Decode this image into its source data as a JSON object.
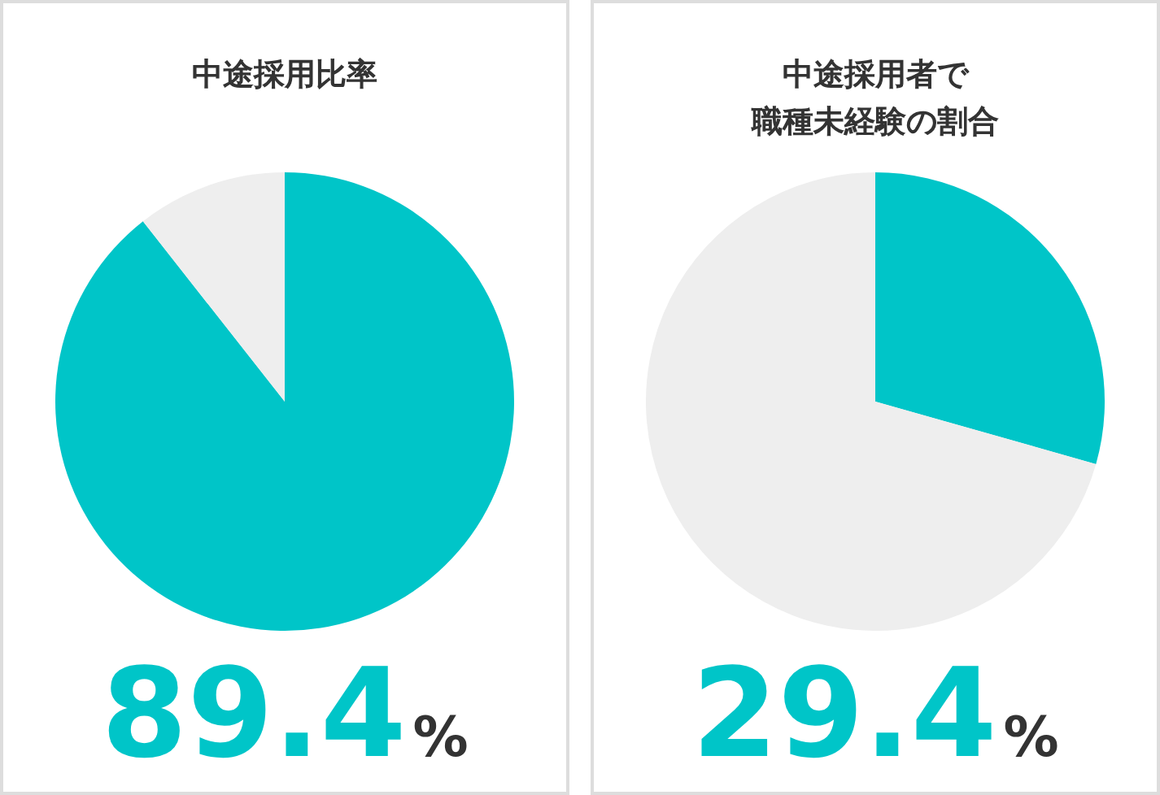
{
  "chart_data": [
    {
      "type": "pie",
      "title": "中途採用比率",
      "categories": [
        null,
        null
      ],
      "values": [
        89.4,
        10.6
      ],
      "colors": [
        "#00c5c8",
        "#eeeeee"
      ],
      "annotations": [
        "89.4%"
      ]
    },
    {
      "type": "pie",
      "title": "中途採用者で",
      "subtitle": "職種未経験の割合",
      "categories": [
        null,
        null
      ],
      "values": [
        29.4,
        70.6
      ],
      "colors": [
        "#00c5c8",
        "#eeeeee"
      ],
      "annotations": [
        "29.4%"
      ]
    }
  ]
}
